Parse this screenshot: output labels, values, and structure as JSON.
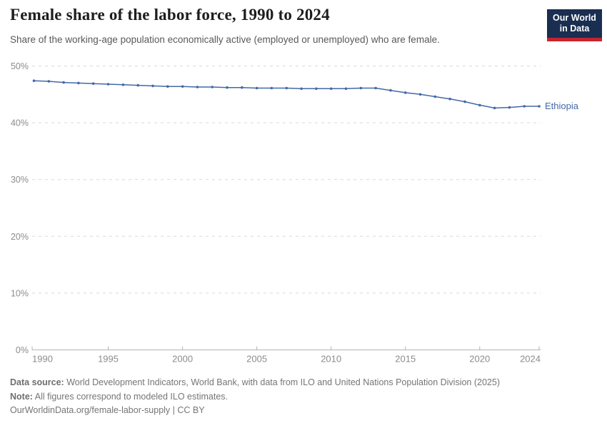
{
  "header": {
    "title": "Female share of the labor force, 1990 to 2024",
    "subtitle": "Share of the working-age population economically active (employed or unemployed) who are female."
  },
  "logo": {
    "line1": "Our World",
    "line2": "in Data",
    "bg_color": "#1a2e51",
    "bar_color": "#c5252d"
  },
  "chart_data": {
    "type": "line",
    "title": "Female share of the labor force, 1990 to 2024",
    "x": [
      1990,
      1991,
      1992,
      1993,
      1994,
      1995,
      1996,
      1997,
      1998,
      1999,
      2000,
      2001,
      2002,
      2003,
      2004,
      2005,
      2006,
      2007,
      2008,
      2009,
      2010,
      2011,
      2012,
      2013,
      2014,
      2015,
      2016,
      2017,
      2018,
      2019,
      2020,
      2021,
      2022,
      2023,
      2024
    ],
    "series": [
      {
        "name": "Ethiopia",
        "color": "#4468a8",
        "values": [
          47.4,
          47.3,
          47.1,
          47.0,
          46.9,
          46.8,
          46.7,
          46.6,
          46.5,
          46.4,
          46.4,
          46.3,
          46.3,
          46.2,
          46.2,
          46.1,
          46.1,
          46.1,
          46.0,
          46.0,
          46.0,
          46.0,
          46.1,
          46.1,
          45.7,
          45.3,
          45.0,
          44.6,
          44.2,
          43.7,
          43.1,
          42.6,
          42.7,
          42.9,
          42.9
        ]
      }
    ],
    "xlabel": "",
    "ylabel": "",
    "ylim": [
      0,
      50
    ],
    "y_ticks": [
      0,
      10,
      20,
      30,
      40,
      50
    ],
    "y_tick_labels": [
      "0%",
      "10%",
      "20%",
      "30%",
      "40%",
      "50%"
    ],
    "x_ticks": [
      1990,
      1995,
      2000,
      2005,
      2010,
      2015,
      2020,
      2024
    ],
    "grid": true,
    "legend_position": "end-of-line",
    "grid_color": "#d9d9d9",
    "axis_color": "#b3b3b3",
    "tick_label_color": "#8c8c8c"
  },
  "footer": {
    "data_source_label": "Data source:",
    "data_source_text": " World Development Indicators, World Bank, with data from ILO and United Nations Population Division (2025)",
    "note_label": "Note:",
    "note_text": " All figures correspond to modeled ILO estimates.",
    "link": "OurWorldinData.org/female-labor-supply | CC BY"
  }
}
